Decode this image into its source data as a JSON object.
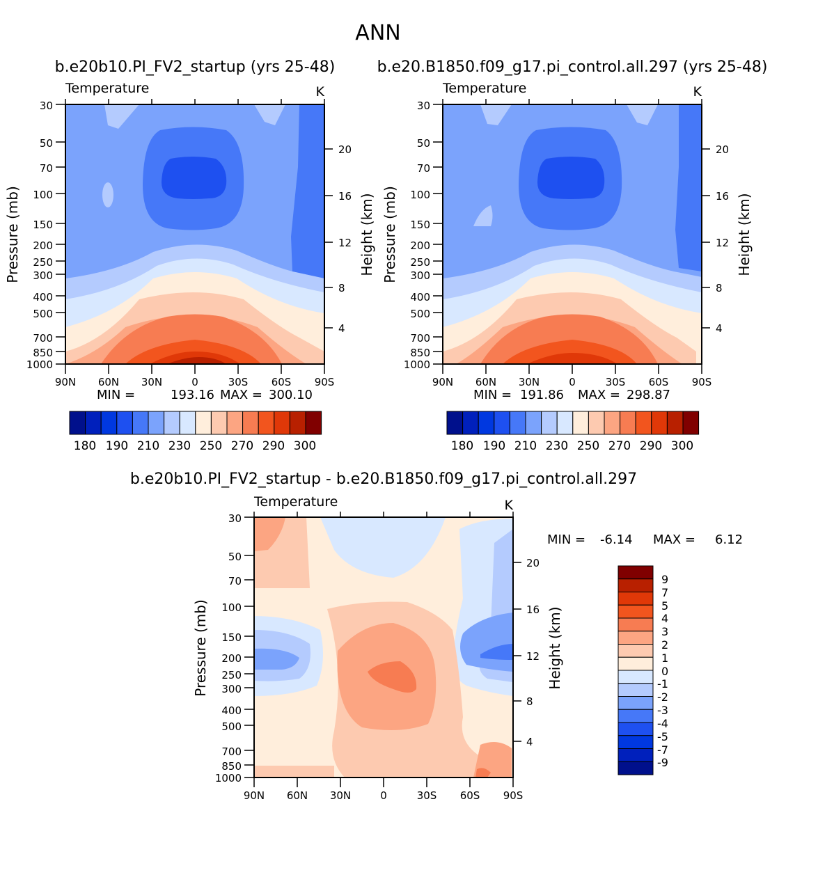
{
  "title": "ANN",
  "chart_data": [
    {
      "type": "heatmap",
      "title": "b.e20b10.PI_FV2_startup (yrs 25-48)",
      "subtitle_left": "Temperature",
      "subtitle_right": "K",
      "ylabel": "Pressure (mb)",
      "y2label": "Height (km)",
      "xticks": [
        "90N",
        "60N",
        "30N",
        "0",
        "30S",
        "60S",
        "90S"
      ],
      "yticks": [
        "30",
        "50",
        "70",
        "100",
        "150",
        "200",
        "250",
        "300",
        "400",
        "500",
        "700",
        "850",
        "1000"
      ],
      "y2ticks": [
        "20",
        "16",
        "12",
        "8",
        "4"
      ],
      "min_label": "MIN =",
      "min_value": "193.16",
      "max_label": "MAX =",
      "max_value": "300.10",
      "colorbar_labels": [
        "180",
        "190",
        "210",
        "230",
        "250",
        "270",
        "290",
        "300"
      ]
    },
    {
      "type": "heatmap",
      "title": "b.e20.B1850.f09_g17.pi_control.all.297 (yrs 25-48)",
      "subtitle_left": "Temperature",
      "subtitle_right": "K",
      "ylabel": "Pressure (mb)",
      "y2label": "Height (km)",
      "xticks": [
        "90N",
        "60N",
        "30N",
        "0",
        "30S",
        "60S",
        "90S"
      ],
      "yticks": [
        "30",
        "50",
        "70",
        "100",
        "150",
        "200",
        "250",
        "300",
        "400",
        "500",
        "700",
        "850",
        "1000"
      ],
      "y2ticks": [
        "20",
        "16",
        "12",
        "8",
        "4"
      ],
      "min_label": "MIN =",
      "min_value": "191.86",
      "max_label": "MAX =",
      "max_value": "298.87",
      "colorbar_labels": [
        "180",
        "190",
        "210",
        "230",
        "250",
        "270",
        "290",
        "300"
      ]
    },
    {
      "type": "heatmap",
      "title": "b.e20b10.PI_FV2_startup - b.e20.B1850.f09_g17.pi_control.all.297",
      "subtitle_left": "Temperature",
      "subtitle_right": "K",
      "ylabel": "Pressure (mb)",
      "y2label": "Height (km)",
      "xticks": [
        "90N",
        "60N",
        "30N",
        "0",
        "30S",
        "60S",
        "90S"
      ],
      "yticks": [
        "30",
        "50",
        "70",
        "100",
        "150",
        "200",
        "250",
        "300",
        "400",
        "500",
        "700",
        "850",
        "1000"
      ],
      "y2ticks": [
        "20",
        "16",
        "12",
        "8",
        "4"
      ],
      "min_label": "MIN =",
      "min_value": "-6.14",
      "max_label": "MAX =",
      "max_value": "6.12",
      "colorbar_labels": [
        "9",
        "7",
        "5",
        "4",
        "3",
        "2",
        "1",
        "0",
        "-1",
        "-2",
        "-3",
        "-4",
        "-5",
        "-7",
        "-9"
      ]
    }
  ],
  "palette": [
    "#00108c",
    "#0020bc",
    "#0038e0",
    "#1e50f0",
    "#4678f8",
    "#7ba3fc",
    "#b4cbfe",
    "#d8e8ff",
    "#ffeedc",
    "#fdcab0",
    "#fca582",
    "#f77c52",
    "#f2551e",
    "#e03808",
    "#b82000",
    "#800000"
  ]
}
